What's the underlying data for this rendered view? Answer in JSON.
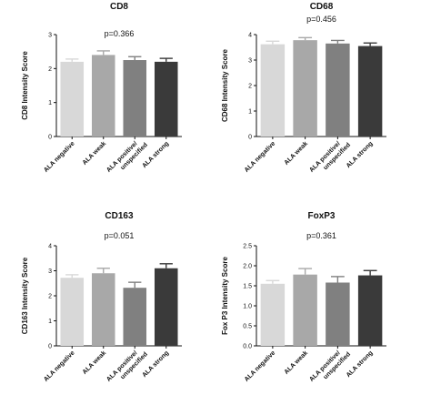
{
  "chart_data": [
    {
      "type": "bar",
      "title": "CD8",
      "annotation": "p=0.366",
      "ylabel": "CD8 Intensity Score",
      "categories": [
        "ALA negative",
        "ALA weak",
        "ALA positive/ unspecified",
        "ALA strong"
      ],
      "values": [
        2.2,
        2.4,
        2.25,
        2.2
      ],
      "errors": [
        0.08,
        0.12,
        0.1,
        0.1
      ],
      "ylim": [
        0,
        3
      ],
      "yticks": [
        "0",
        "1",
        "2",
        "3"
      ],
      "colors": [
        "#d8d8d8",
        "#a8a8a8",
        "#808080",
        "#3a3a3a"
      ],
      "grid": false,
      "legend": "none"
    },
    {
      "type": "bar",
      "title": "CD68",
      "annotation": "p=0.456",
      "ylabel": "CD68 Intensity Score",
      "categories": [
        "ALA negative",
        "ALA weak",
        "ALA positive/ unspecified",
        "ALA strong"
      ],
      "values": [
        3.62,
        3.78,
        3.65,
        3.55
      ],
      "errors": [
        0.12,
        0.1,
        0.12,
        0.12
      ],
      "ylim": [
        0,
        4
      ],
      "yticks": [
        "0",
        "1",
        "2",
        "3",
        "4"
      ],
      "colors": [
        "#d8d8d8",
        "#a8a8a8",
        "#808080",
        "#3a3a3a"
      ],
      "grid": false,
      "legend": "none"
    },
    {
      "type": "bar",
      "title": "CD163",
      "annotation": "p=0.051",
      "ylabel": "CD163 Intensity Score",
      "categories": [
        "ALA negative",
        "ALA weak",
        "ALA positive/ unspecified",
        "ALA strong"
      ],
      "values": [
        2.72,
        2.9,
        2.32,
        3.1
      ],
      "errors": [
        0.12,
        0.2,
        0.22,
        0.18
      ],
      "ylim": [
        0,
        4
      ],
      "yticks": [
        "0",
        "1",
        "2",
        "3",
        "4"
      ],
      "colors": [
        "#d8d8d8",
        "#a8a8a8",
        "#808080",
        "#3a3a3a"
      ],
      "grid": false,
      "legend": "none"
    },
    {
      "type": "bar",
      "title": "FoxP3",
      "annotation": "p=0.361",
      "ylabel": "Fox P3 Intensity Score",
      "categories": [
        "ALA negative",
        "ALA weak",
        "ALA positive/ unspecified",
        "ALA strong"
      ],
      "values": [
        1.55,
        1.78,
        1.58,
        1.76
      ],
      "errors": [
        0.08,
        0.15,
        0.15,
        0.12
      ],
      "ylim": [
        0,
        2.5
      ],
      "yticks": [
        "0.0",
        "0.5",
        "1.0",
        "1.5",
        "2.0",
        "2.5"
      ],
      "colors": [
        "#d8d8d8",
        "#a8a8a8",
        "#808080",
        "#3a3a3a"
      ],
      "grid": false,
      "legend": "none"
    }
  ]
}
